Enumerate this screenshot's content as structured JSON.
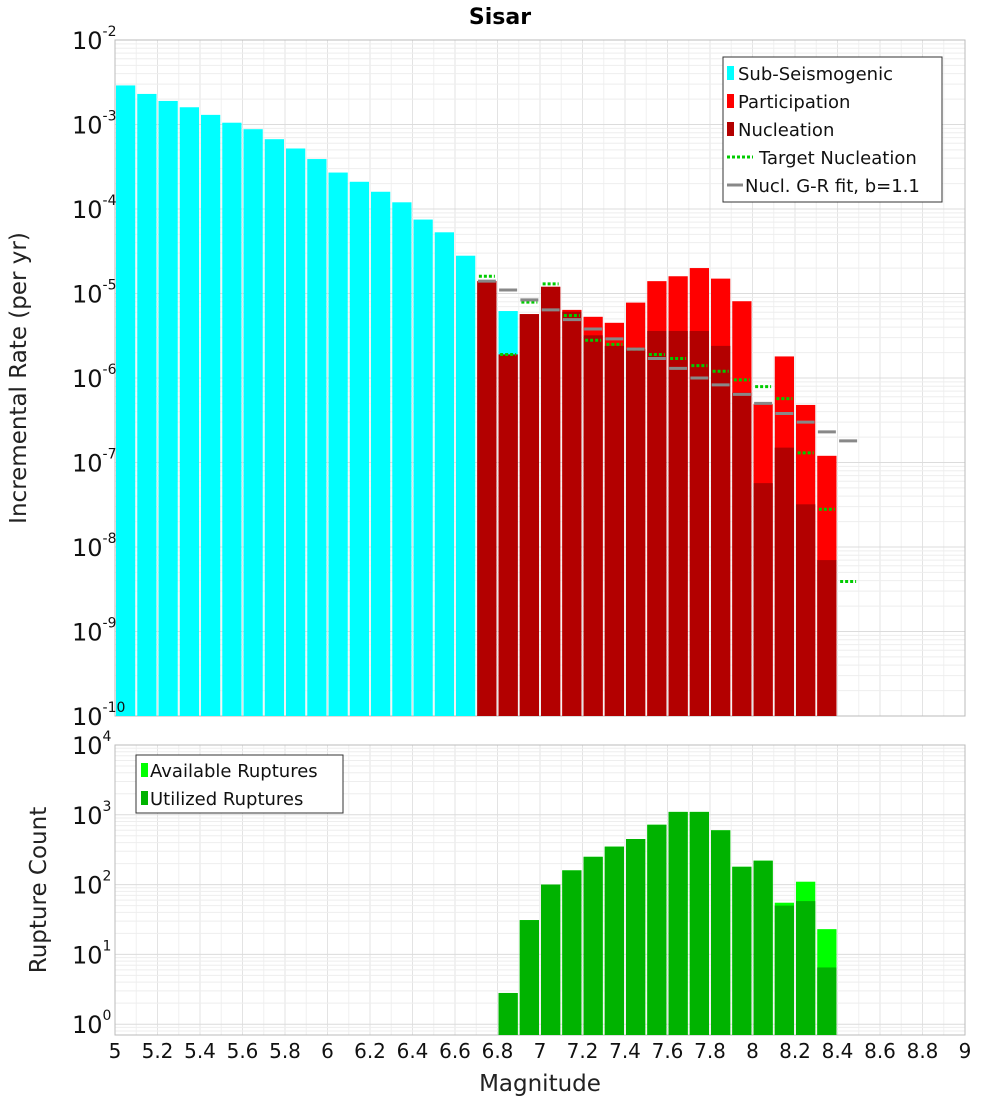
{
  "chart_data": [
    {
      "type": "bar",
      "title": "Sisar",
      "xlabel": "",
      "ylabel": "Incremental Rate (per yr)",
      "yscale": "log",
      "ylim": [
        1e-10,
        0.01
      ],
      "xlim": [
        5,
        9
      ],
      "grid": true,
      "legend_position": "top-right",
      "x": [
        5.05,
        5.15,
        5.25,
        5.35,
        5.45,
        5.55,
        5.65,
        5.75,
        5.85,
        5.95,
        6.05,
        6.15,
        6.25,
        6.35,
        6.45,
        6.55,
        6.65,
        6.75,
        6.85,
        6.95,
        7.05,
        7.15,
        7.25,
        7.35,
        7.45,
        7.55,
        7.65,
        7.75,
        7.85,
        7.95,
        8.05,
        8.15,
        8.25,
        8.35,
        8.45
      ],
      "series": [
        {
          "name": "Sub-Seismogenic",
          "color": "#00ffff",
          "values": [
            0.0029,
            0.0023,
            0.0019,
            0.0016,
            0.0013,
            0.00105,
            0.00088,
            0.00067,
            0.00052,
            0.00039,
            0.00027,
            0.00021,
            0.00016,
            0.00012,
            7.5e-05,
            5.3e-05,
            2.8e-05,
            1.3e-05,
            6.2e-06,
            null,
            null,
            null,
            null,
            null,
            null,
            null,
            null,
            null,
            null,
            null,
            null,
            null,
            null,
            null,
            null
          ]
        },
        {
          "name": "Participation",
          "color": "#ff0000",
          "values": [
            null,
            null,
            null,
            null,
            null,
            null,
            null,
            null,
            null,
            null,
            null,
            null,
            null,
            null,
            null,
            null,
            null,
            1.4e-05,
            1.9e-06,
            5.7e-06,
            1.2e-05,
            6.4e-06,
            5.3e-06,
            4.5e-06,
            7.8e-06,
            1.4e-05,
            1.6e-05,
            2e-05,
            1.5e-05,
            8.1e-06,
            4.9e-07,
            1.8e-06,
            4.8e-07,
            1.2e-07,
            null
          ]
        },
        {
          "name": "Nucleation",
          "color": "#b30000",
          "values": [
            null,
            null,
            null,
            null,
            null,
            null,
            null,
            null,
            null,
            null,
            null,
            null,
            null,
            null,
            null,
            null,
            null,
            1.4e-05,
            1.9e-06,
            5.7e-06,
            1.2e-05,
            6.1e-06,
            3.2e-06,
            2.4e-06,
            2.2e-06,
            3.6e-06,
            3.6e-06,
            3.6e-06,
            2.4e-06,
            6.7e-07,
            5.7e-08,
            1.5e-07,
            3.2e-08,
            7e-09,
            null
          ]
        },
        {
          "name": "Target Nucleation",
          "color": "#00cc00",
          "style": "dotted",
          "values": [
            null,
            null,
            null,
            null,
            null,
            null,
            null,
            null,
            null,
            null,
            null,
            null,
            null,
            null,
            null,
            null,
            null,
            1.6e-05,
            1.9e-06,
            7.9e-06,
            1.3e-05,
            5.5e-06,
            2.8e-06,
            2.5e-06,
            2.2e-06,
            1.9e-06,
            1.7e-06,
            1.4e-06,
            1.2e-06,
            9.5e-07,
            7.9e-07,
            5.7e-07,
            1.3e-07,
            2.8e-08,
            3.9e-09
          ]
        },
        {
          "name": "Nucl. G-R fit, b=1.1",
          "color": "#888888",
          "style": "solid",
          "values": [
            null,
            null,
            null,
            null,
            null,
            null,
            null,
            null,
            null,
            null,
            null,
            null,
            null,
            null,
            null,
            null,
            null,
            1.4e-05,
            1.1e-05,
            8.4e-06,
            6.4e-06,
            4.9e-06,
            3.8e-06,
            2.9e-06,
            2.2e-06,
            1.7e-06,
            1.3e-06,
            1e-06,
            8.3e-07,
            6.4e-07,
            5e-07,
            3.8e-07,
            3e-07,
            2.3e-07,
            1.8e-07
          ]
        }
      ]
    },
    {
      "type": "bar",
      "title": "",
      "xlabel": "Magnitude",
      "ylabel": "Rupture Count",
      "yscale": "log",
      "ylim": [
        0.7,
        10000
      ],
      "xlim": [
        5,
        9
      ],
      "grid": true,
      "legend_position": "top-left",
      "x": [
        6.85,
        6.95,
        7.05,
        7.15,
        7.25,
        7.35,
        7.45,
        7.55,
        7.65,
        7.75,
        7.85,
        7.95,
        8.05,
        8.15,
        8.25,
        8.35
      ],
      "series": [
        {
          "name": "Available Ruptures",
          "color": "#00ff00",
          "values": [
            2.8,
            31,
            100,
            160,
            250,
            350,
            450,
            720,
            1100,
            1100,
            600,
            180,
            220,
            55,
            110,
            23
          ]
        },
        {
          "name": "Utilized Ruptures",
          "color": "#00b300",
          "values": [
            2.8,
            31,
            100,
            160,
            250,
            350,
            450,
            720,
            1100,
            1100,
            600,
            180,
            220,
            50,
            58,
            6.5
          ]
        }
      ]
    }
  ],
  "x_axis": {
    "ticks": [
      "5",
      "5.2",
      "5.4",
      "5.6",
      "5.8",
      "6",
      "6.2",
      "6.4",
      "6.6",
      "6.8",
      "7",
      "7.2",
      "7.4",
      "7.6",
      "7.8",
      "8",
      "8.2",
      "8.4",
      "8.6",
      "8.8",
      "9"
    ]
  },
  "top_y_ticks": [
    {
      "base": "10",
      "exp": "-2"
    },
    {
      "base": "10",
      "exp": "-3"
    },
    {
      "base": "10",
      "exp": "-4"
    },
    {
      "base": "10",
      "exp": "-5"
    },
    {
      "base": "10",
      "exp": "-6"
    },
    {
      "base": "10",
      "exp": "-7"
    },
    {
      "base": "10",
      "exp": "-8"
    },
    {
      "base": "10",
      "exp": "-9"
    },
    {
      "base": "10",
      "exp": "-10"
    }
  ],
  "bottom_y_ticks": [
    {
      "base": "10",
      "exp": "4"
    },
    {
      "base": "10",
      "exp": "3"
    },
    {
      "base": "10",
      "exp": "2"
    },
    {
      "base": "10",
      "exp": "1"
    },
    {
      "base": "10",
      "exp": "0"
    }
  ]
}
